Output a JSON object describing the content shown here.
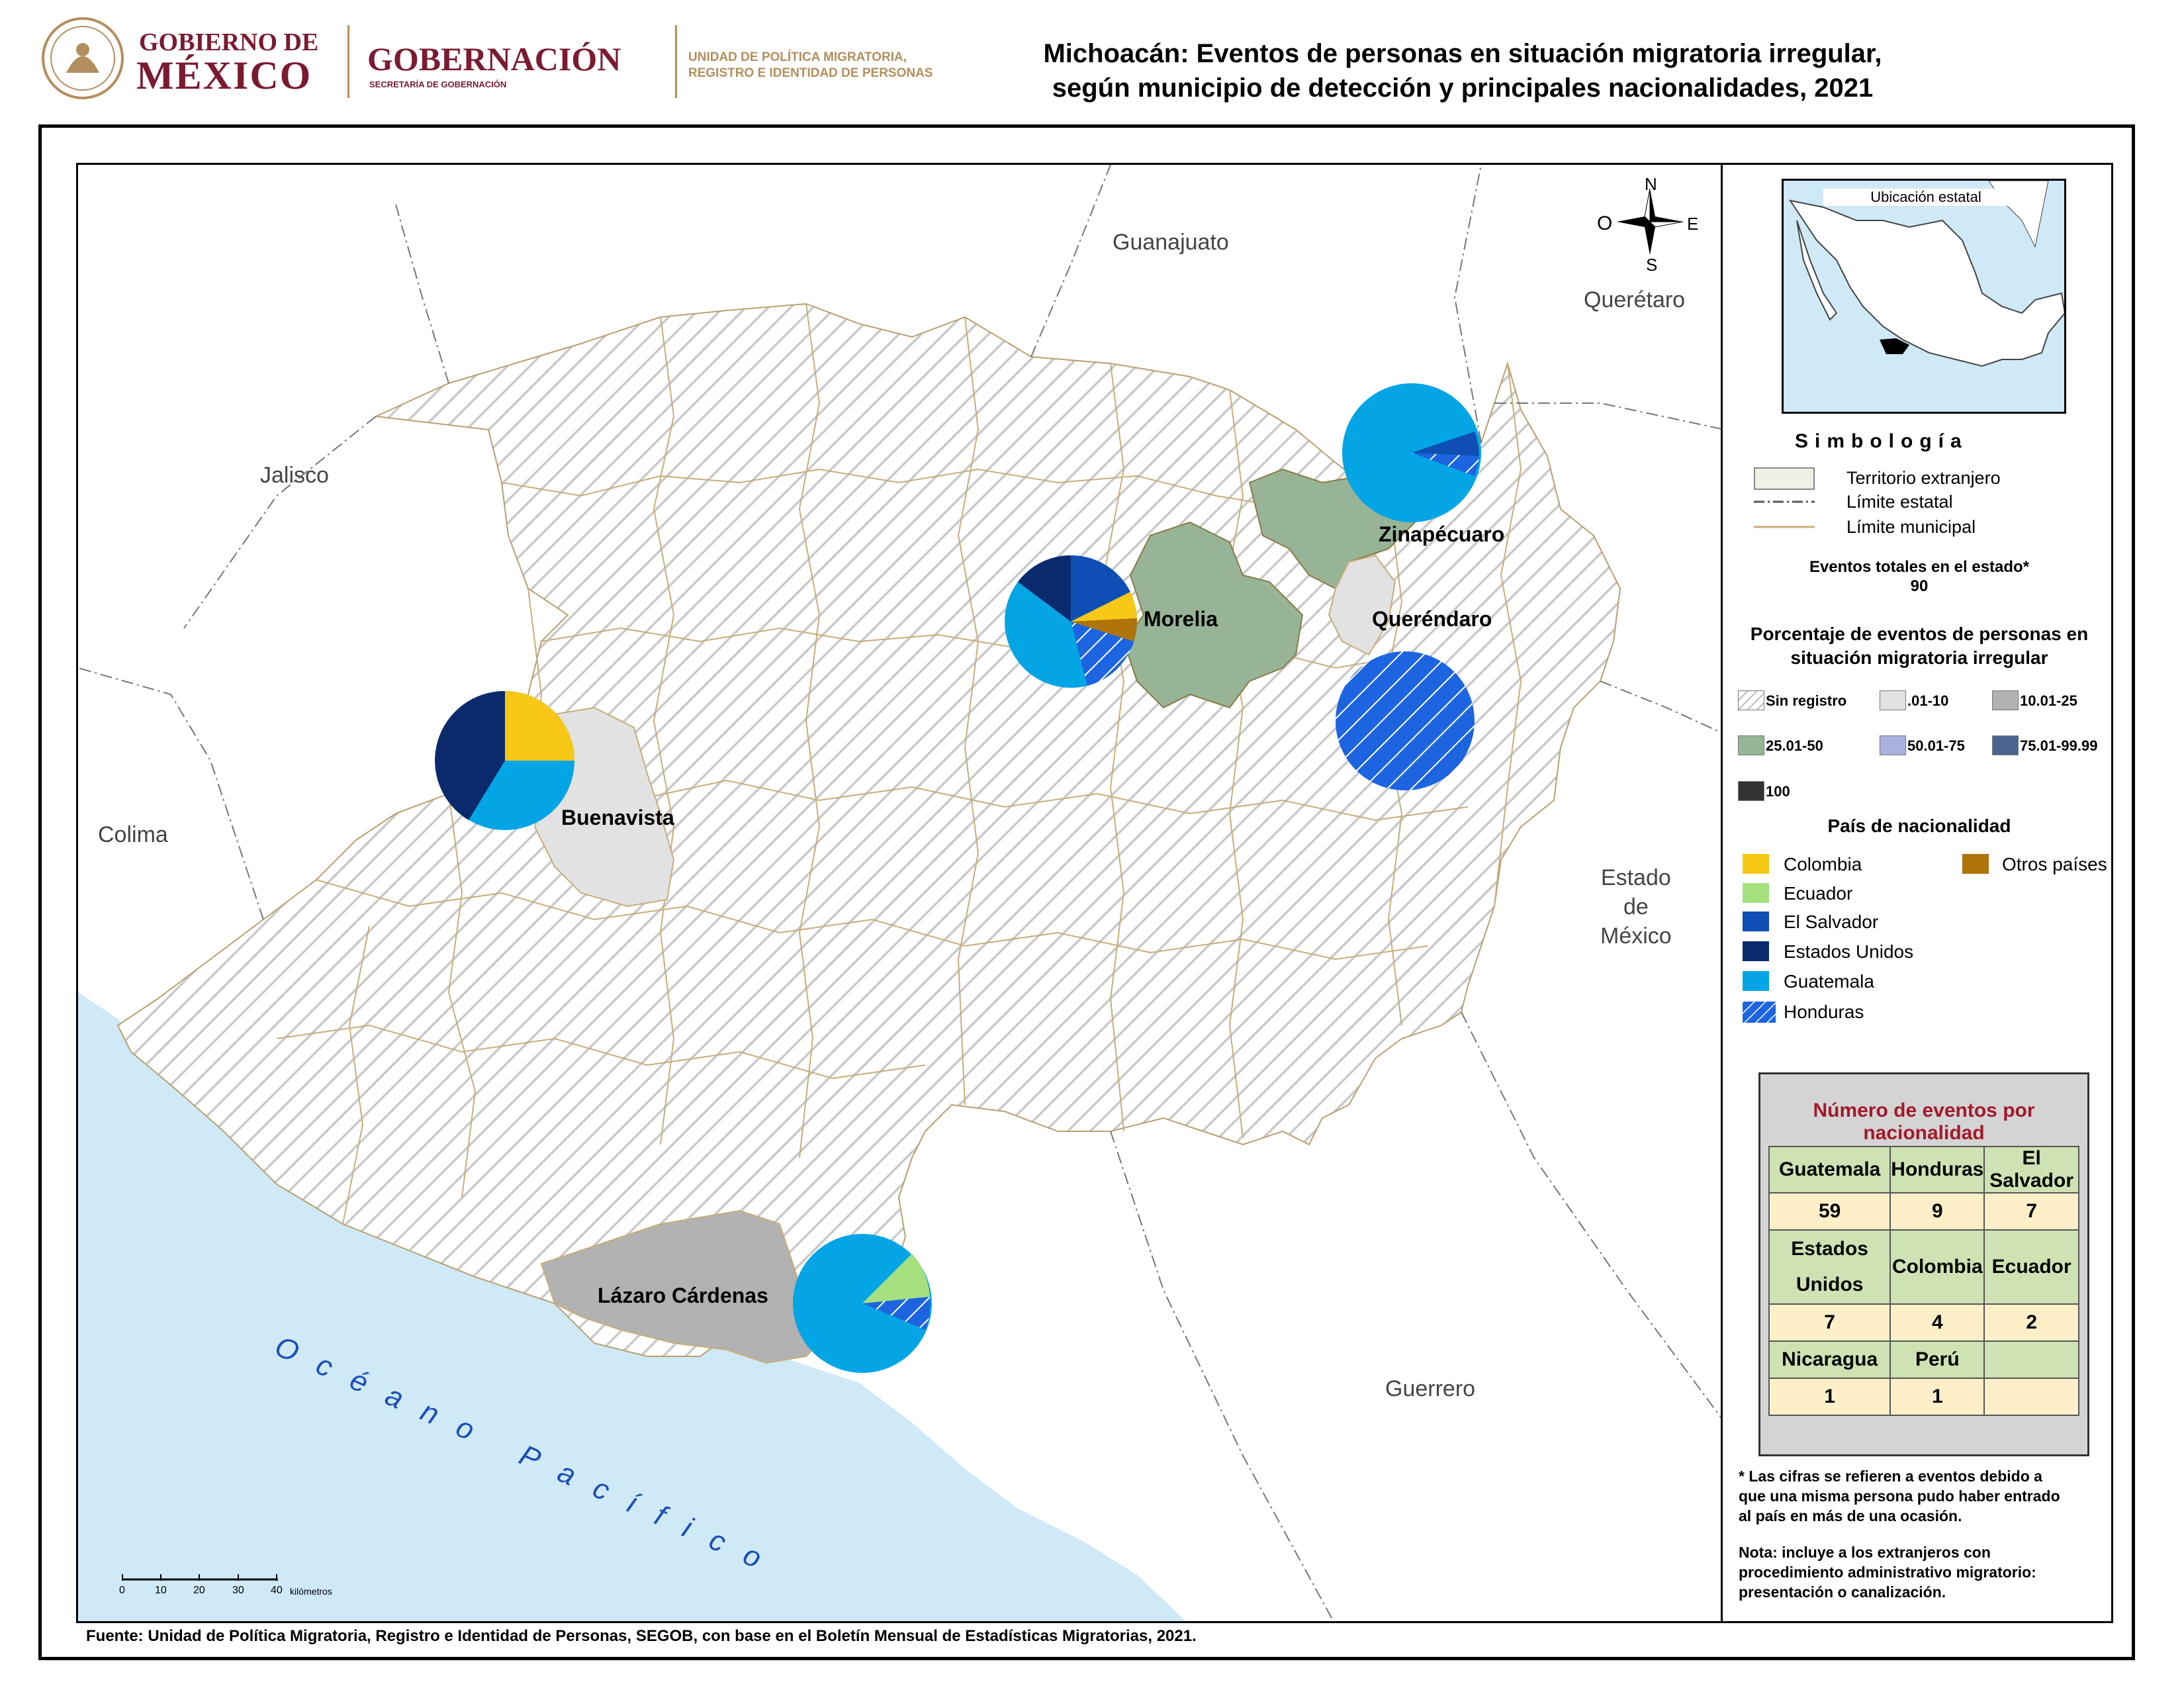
{
  "header": {
    "gov_line1": "GOBIERNO DE",
    "gov_line2": "MÉXICO",
    "ministry": "GOBERNACIÓN",
    "ministry_sub": "SECRETARÍA DE GOBERNACIÓN",
    "unit_line1": "UNIDAD DE POLÍTICA MIGRATORIA,",
    "unit_line2": "REGISTRO E IDENTIDAD DE PERSONAS",
    "title_line1": "Michoacán: Eventos de personas en situación migratoria irregular,",
    "title_line2": "según municipio de detección y principales nacionalidades, 2021"
  },
  "map": {
    "neighbors": {
      "guanajuato": "Guanajuato",
      "queretaro": "Querétaro",
      "jalisco": "Jalisco",
      "colima": "Colima",
      "estado_line1": "Estado",
      "estado_line2": "de",
      "estado_line3": "México",
      "guerrero": "Guerrero"
    },
    "ocean": "Océano Pacífico",
    "municipalities": {
      "zinapecuaro": "Zinapécuaro",
      "morelia": "Morelia",
      "querendaro": "Queréndaro",
      "buenavista": "Buenavista",
      "lazaro": "Lázaro Cárdenas"
    },
    "compass": {
      "n": "N",
      "s": "S",
      "e": "E",
      "o": "O"
    },
    "scale": {
      "ticks": [
        "0",
        "10",
        "20",
        "30",
        "40"
      ],
      "unit": "kilómetros"
    },
    "colors": {
      "colombia": "#f7c815",
      "ecuador": "#a6df7e",
      "el_salvador": "#0f4fb5",
      "estados_unidos": "#0b2a6e",
      "guatemala": "#04a5e5",
      "honduras": "#1d64e0",
      "otros": "#b0730a",
      "ocean": "#cfe9f6",
      "range_25_50": "#97b596",
      "range_10_25": "#b2b2b2",
      "range_01_10": "#e2e2e2"
    }
  },
  "inset": {
    "title": "Ubicación estatal"
  },
  "simbologia": {
    "title": "Simbología",
    "territorio": "Territorio extranjero",
    "limite_estatal": "Límite estatal",
    "limite_municipal": "Límite municipal",
    "total_label": "Eventos totales en el estado*",
    "total_value": "90",
    "pct_title_line1": "Porcentaje de eventos de personas en",
    "pct_title_line2": "situación migratoria irregular",
    "ranges": [
      "Sin registro",
      ".01-10",
      "10.01-25",
      "25.01-50",
      "50.01-75",
      "75.01-99.99",
      "100"
    ],
    "nat_title": "País de nacionalidad",
    "nationalities": [
      "Colombia",
      "Ecuador",
      "El Salvador",
      "Estados Unidos",
      "Guatemala",
      "Honduras",
      "Otros países"
    ]
  },
  "counts": {
    "title": "Número de eventos por nacionalidad",
    "row1_headers": [
      "Guatemala",
      "Honduras",
      "El Salvador"
    ],
    "row1_values": [
      "59",
      "9",
      "7"
    ],
    "row2_headers": [
      "Estados Unidos",
      "Colombia",
      "Ecuador"
    ],
    "row2_values": [
      "7",
      "4",
      "2"
    ],
    "row3_headers": [
      "Nicaragua",
      "Perú",
      ""
    ],
    "row3_values": [
      "1",
      "1",
      ""
    ]
  },
  "footnotes": {
    "note1_line1": "* Las cifras se refieren a eventos debido a",
    "note1_line2": "que una misma persona pudo haber entrado",
    "note1_line3": "al país en más de una ocasión.",
    "note2_line1": "Nota: incluye a los extranjeros con",
    "note2_line2": "procedimiento administrativo migratorio:",
    "note2_line3": "presentación o canalización."
  },
  "source": "Fuente: Unidad de Política Migratoria, Registro e Identidad de Personas, SEGOB, con base en el Boletín Mensual de Estadísticas Migratorias, 2021."
}
